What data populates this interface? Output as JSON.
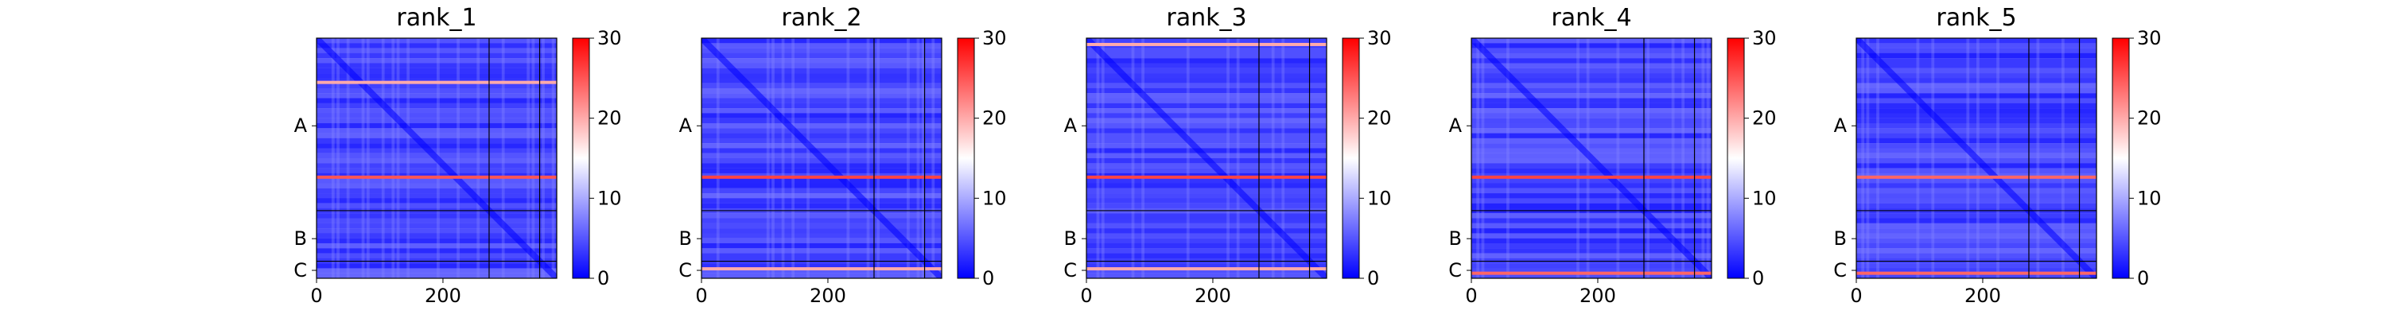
{
  "chart_data": [
    {
      "type": "heatmap",
      "title": "rank_1",
      "x_ticks": [
        0,
        200
      ],
      "y_ticks": [
        "A",
        "B",
        "C"
      ],
      "xlim": [
        0,
        380
      ],
      "colorbar": {
        "ticks": [
          0,
          10,
          20,
          30
        ],
        "range": [
          0,
          30
        ],
        "colormap": "bwr"
      },
      "chain_boundaries": [
        273,
        353
      ],
      "notable_rows": [
        {
          "row": 70,
          "value": 20
        },
        {
          "row": 220,
          "value": 25
        }
      ]
    },
    {
      "type": "heatmap",
      "title": "rank_2",
      "x_ticks": [
        0,
        200
      ],
      "y_ticks": [
        "A",
        "B",
        "C"
      ],
      "xlim": [
        0,
        380
      ],
      "colorbar": {
        "ticks": [
          0,
          10,
          20,
          30
        ],
        "range": [
          0,
          30
        ],
        "colormap": "bwr"
      },
      "chain_boundaries": [
        273,
        353
      ],
      "notable_rows": [
        {
          "row": 220,
          "value": 26
        },
        {
          "row": 365,
          "value": 20
        }
      ]
    },
    {
      "type": "heatmap",
      "title": "rank_3",
      "x_ticks": [
        0,
        200
      ],
      "y_ticks": [
        "A",
        "B",
        "C"
      ],
      "xlim": [
        0,
        380
      ],
      "colorbar": {
        "ticks": [
          0,
          10,
          20,
          30
        ],
        "range": [
          0,
          30
        ],
        "colormap": "bwr"
      },
      "chain_boundaries": [
        273,
        353
      ],
      "notable_rows": [
        {
          "row": 220,
          "value": 26
        },
        {
          "row": 10,
          "value": 20
        },
        {
          "row": 365,
          "value": 20
        }
      ]
    },
    {
      "type": "heatmap",
      "title": "rank_4",
      "x_ticks": [
        0,
        200
      ],
      "y_ticks": [
        "A",
        "B",
        "C"
      ],
      "xlim": [
        0,
        380
      ],
      "colorbar": {
        "ticks": [
          0,
          10,
          20,
          30
        ],
        "range": [
          0,
          30
        ],
        "colormap": "bwr"
      },
      "chain_boundaries": [
        273,
        353
      ],
      "notable_rows": [
        {
          "row": 220,
          "value": 26
        },
        {
          "row": 372,
          "value": 24
        }
      ]
    },
    {
      "type": "heatmap",
      "title": "rank_5",
      "x_ticks": [
        0,
        200
      ],
      "y_ticks": [
        "A",
        "B",
        "C"
      ],
      "xlim": [
        0,
        380
      ],
      "colorbar": {
        "ticks": [
          0,
          10,
          20,
          30
        ],
        "range": [
          0,
          30
        ],
        "colormap": "bwr"
      },
      "chain_boundaries": [
        273,
        353
      ],
      "notable_rows": [
        {
          "row": 220,
          "value": 24
        },
        {
          "row": 372,
          "value": 24
        }
      ]
    }
  ],
  "colors": {
    "low": "#0000ff",
    "mid": "#ffffff",
    "high": "#ff0000",
    "boundary": "#000000"
  }
}
